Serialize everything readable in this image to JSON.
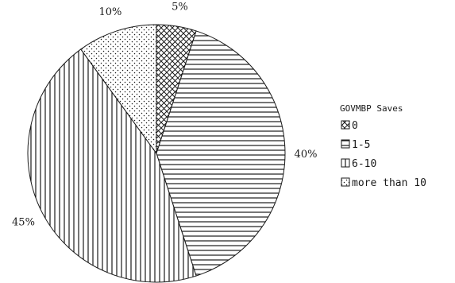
{
  "chart_data": {
    "type": "pie",
    "legend_title": "GOVMBP Saves",
    "legend_position": "right",
    "start_angle_deg": 0,
    "direction": "clockwise",
    "slices": [
      {
        "label": "0",
        "value": 5,
        "value_label": "5%",
        "pattern": "crosshatch"
      },
      {
        "label": "1-5",
        "value": 40,
        "value_label": "40%",
        "pattern": "horizontal"
      },
      {
        "label": "6-10",
        "value": 45,
        "value_label": "45%",
        "pattern": "vertical"
      },
      {
        "label": "more than 10",
        "value": 10,
        "value_label": "10%",
        "pattern": "dots"
      }
    ],
    "colors": {
      "stroke": "#1a1a1a",
      "background": "#ffffff"
    }
  }
}
